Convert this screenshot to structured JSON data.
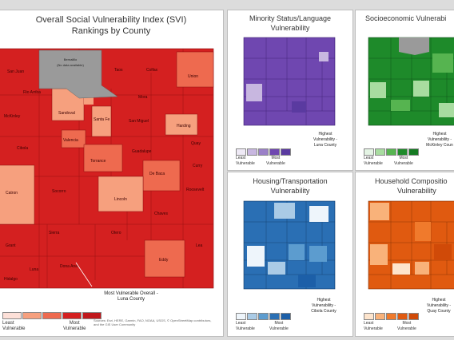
{
  "main_map": {
    "title_line1": "Overall Social Vulnerability Index (SVI)",
    "title_line2": "Rankings by County",
    "legend_left": "Least\nVulnerable",
    "legend_right": "Most\nVulnerable",
    "callout": "Most Vulnerable Overall -\nLuna County",
    "nodata_label": "Bernalillo\n(No data available)",
    "source": "Sources: Esri, HERE, Garmin, FAO, NOAA, USGS, © OpenStreetMap contributors, and the GIS User Community",
    "colors": [
      "#fde0d8",
      "#f6a07e",
      "#ee6a4f",
      "#d42020",
      "#c0181c"
    ],
    "counties": [
      "San Juan",
      "Rio Arriba",
      "Taos",
      "Colfax",
      "Union",
      "McKinley",
      "Sandoval",
      "Los Alamos",
      "Santa Fe",
      "Mora",
      "Harding",
      "San Miguel",
      "Cibola",
      "Valencia",
      "Guadalupe",
      "Quay",
      "Catron",
      "Socorro",
      "Torrance",
      "De Baca",
      "Curry",
      "Roosevelt",
      "Lincoln",
      "Chaves",
      "Sierra",
      "Otero",
      "Lea",
      "Grant",
      "Luna",
      "Dona Ana",
      "Eddy",
      "Hidalgo"
    ]
  },
  "minority_map": {
    "title_line1": "Minority Status/Language",
    "title_line2": "Vulnerability",
    "callout": "Highest\nVulnerability -\nLuna County",
    "legend_left": "Least\nVulnerable",
    "legend_right": "Most\nVulnerable",
    "colors": [
      "#efeaf6",
      "#c8b7e0",
      "#9b80c8",
      "#6f47b0",
      "#5a3aa0"
    ]
  },
  "socioeconomic_map": {
    "title_line1": "Socioeconomic Vulnerabi",
    "callout": "Highest\nVulnerability -\nMcKinley Coun",
    "legend_left": "Least\nVulnerable",
    "legend_right": "Most\nVulnerable",
    "colors": [
      "#e4f4e4",
      "#a8dca0",
      "#56b450",
      "#1e8a2a",
      "#157a22"
    ]
  },
  "housing_map": {
    "title_line1": "Housing/Transportation",
    "title_line2": "Vulnerability",
    "callout": "Highest\nVulnerability -\nCibola County",
    "legend_left": "Least\nVulnerable",
    "legend_right": "Most\nVulnerable",
    "colors": [
      "#eef5fb",
      "#aacbe6",
      "#5c9ccf",
      "#2a6fb4",
      "#1c5fa8"
    ]
  },
  "household_map": {
    "title_line1": "Household Compositio",
    "title_line2": "Vulnerability",
    "callout": "Highest\nVulnerability -\nQuay County",
    "legend_left": "Least\nVulnerable",
    "legend_right": "Most\nVulnerable",
    "colors": [
      "#fde4cc",
      "#f9b27a",
      "#f07a2c",
      "#e05a10",
      "#d04a08"
    ]
  }
}
